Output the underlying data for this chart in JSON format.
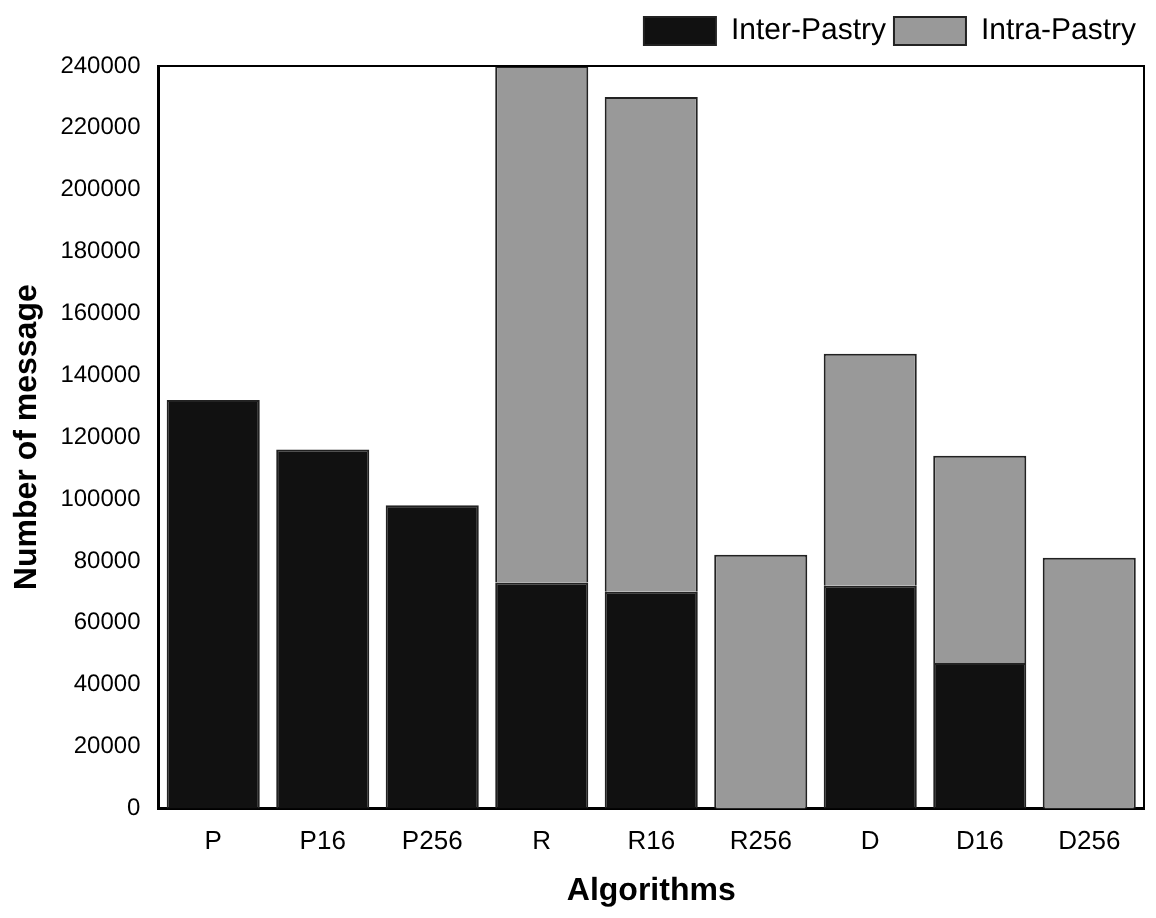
{
  "chart_data": {
    "type": "bar",
    "stacked": true,
    "xlabel": "Algorithms",
    "ylabel": "Number of message",
    "categories": [
      "P",
      "P16",
      "P256",
      "R",
      "R16",
      "R256",
      "D",
      "D16",
      "D256"
    ],
    "series": [
      {
        "name": "Inter-Pastry",
        "color": "#111111",
        "values": [
          132000,
          116000,
          98000,
          73000,
          70000,
          0,
          72000,
          47000,
          0
        ]
      },
      {
        "name": "Intra-Pastry",
        "color": "#999999",
        "values": [
          0,
          0,
          0,
          167000,
          160000,
          82000,
          75000,
          67000,
          81000
        ]
      }
    ],
    "ylim": [
      0,
      240000
    ],
    "yticks": [
      0,
      20000,
      40000,
      60000,
      80000,
      100000,
      120000,
      140000,
      160000,
      180000,
      200000,
      220000,
      240000
    ],
    "grid": false,
    "legend": "top right"
  }
}
